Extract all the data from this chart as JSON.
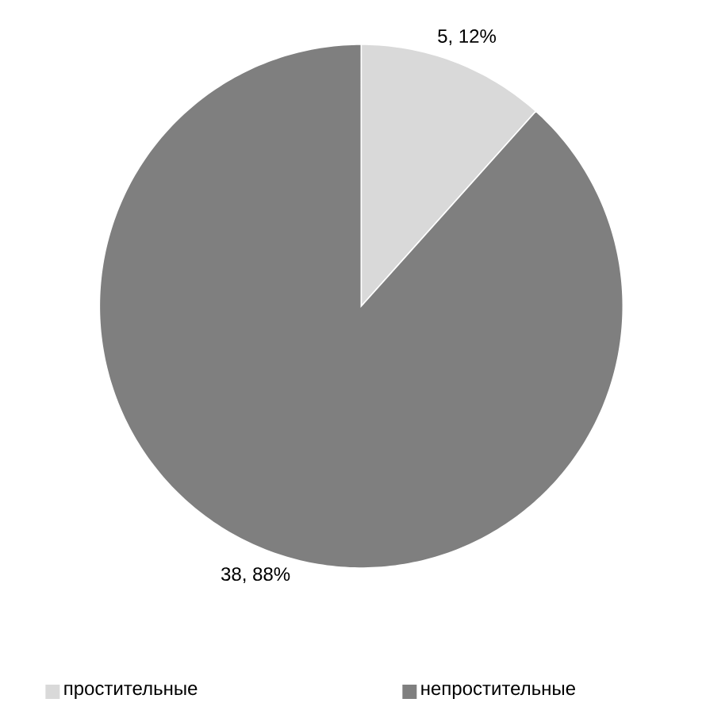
{
  "chart_data": {
    "type": "pie",
    "categories": [
      "простительные",
      "непростительные"
    ],
    "values": [
      5,
      38
    ],
    "colors": [
      "#d9d9d9",
      "#7f7f7f"
    ],
    "value_labels": [
      "5, 12%",
      "38, 88%"
    ],
    "legend": "bottom"
  }
}
